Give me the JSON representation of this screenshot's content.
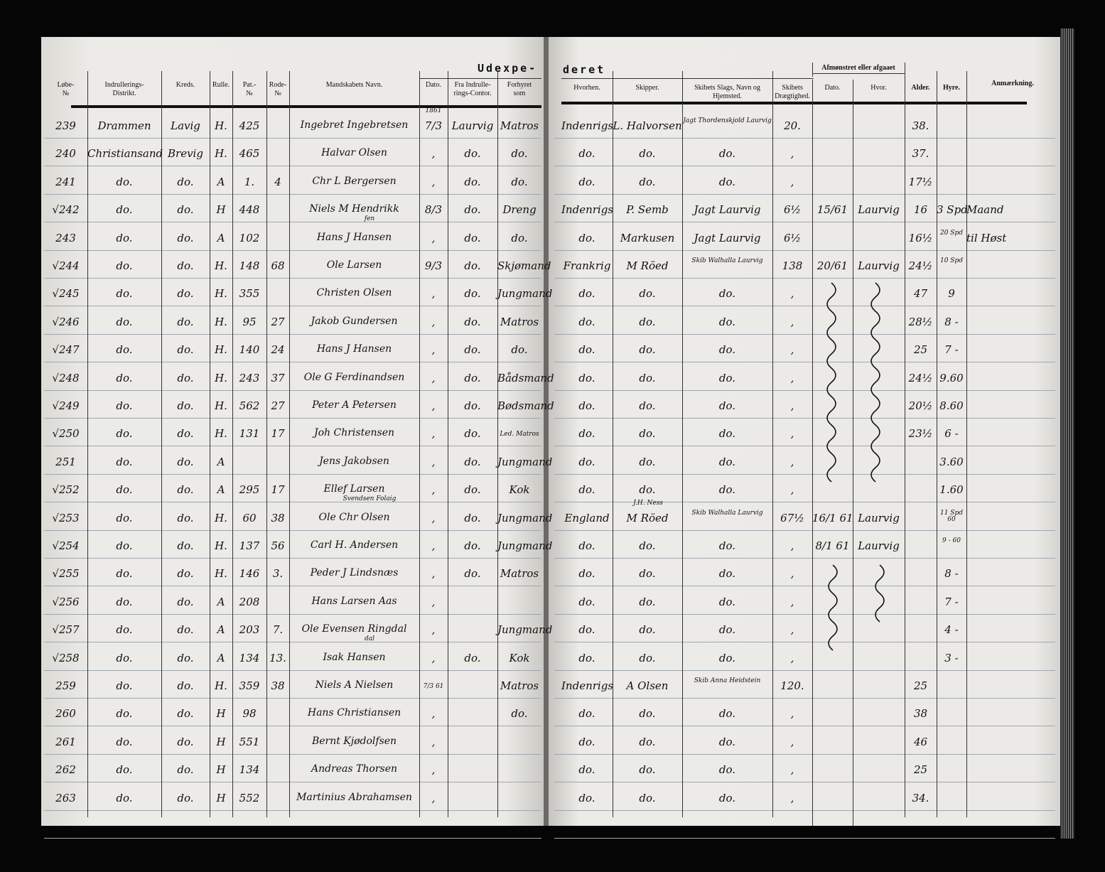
{
  "left_header": {
    "title_part": "Udexpe-",
    "columns": [
      "Løbe-\n№",
      "Indrullerings-\nDistrikt.",
      "Kreds.",
      "Rulle.",
      "Pat.-\n№",
      "Rode-\n№",
      "Mandskabets Navn.",
      "Dato.",
      "Fra Indrulle-\nrings-Contor.",
      "Forhyret\nsom"
    ]
  },
  "right_header": {
    "title_part": "deret",
    "group_label": "Afmønstret eller afgaaet",
    "columns": [
      "Hvorhen.",
      "Skipper.",
      "Skibets Slags, Navn og\nHjemsted.",
      "Skibets\nDrægtighed.",
      "Dato.",
      "Hvor.",
      "Alder.",
      "Hyre.",
      "Anmærkning."
    ]
  },
  "year_note": "1861",
  "rows": [
    {
      "left": [
        "239",
        "Drammen",
        "Lavig",
        "H.",
        "425",
        "",
        "Ingebret Ingebretsen",
        "7/3",
        "Laurvig",
        "Matros"
      ],
      "right": [
        "Indenrigs",
        "L. Halvorsen",
        "Jagt Thordenskjold Laurvig",
        "20.",
        "",
        "",
        "38.",
        "",
        ""
      ]
    },
    {
      "left": [
        "240",
        "Christiansand",
        "Brevig",
        "H.",
        "465",
        "",
        "Halvar Olsen",
        ",",
        "do.",
        "do."
      ],
      "right": [
        "do.",
        "do.",
        "do.",
        ",",
        "",
        "",
        "37.",
        "",
        ""
      ]
    },
    {
      "left": [
        "241",
        "do.",
        "do.",
        "A",
        "1.",
        "4",
        "Chr L Bergersen",
        ",",
        "do.",
        "do."
      ],
      "right": [
        "do.",
        "do.",
        "do.",
        ",",
        "",
        "",
        "17½",
        "",
        ""
      ]
    },
    {
      "left": [
        "√242",
        "do.",
        "do.",
        "H",
        "448",
        "",
        "Niels M Hendrikk",
        "8/3",
        "do.",
        "Dreng"
      ],
      "right": [
        "Indenrigs",
        "P. Semb",
        "Jagt Laurvig",
        "6½",
        "15/61",
        "Laurvig",
        "16",
        "3 Spd",
        "Maand"
      ]
    },
    {
      "left": [
        "243",
        "do.",
        "do.",
        "A",
        "102",
        "",
        "Hans J Hansen",
        ",",
        "do.",
        "do."
      ],
      "right": [
        "do.",
        "Markusen",
        "Jagt Laurvig",
        "6½",
        "",
        "",
        "16½",
        "20 Spd",
        "til Høst"
      ]
    },
    {
      "left": [
        "√244",
        "do.",
        "do.",
        "H.",
        "148",
        "68",
        "Ole Larsen",
        "9/3",
        "do.",
        "Skjømand"
      ],
      "right": [
        "Frankrig",
        "M Röed",
        "Skib Walhalla Laurvig",
        "138",
        "20/61",
        "Laurvig",
        "24½",
        "10 Spd",
        ""
      ]
    },
    {
      "left": [
        "√245",
        "do.",
        "do.",
        "H.",
        "355",
        "",
        "Christen Olsen",
        ",",
        "do.",
        "Jungmand"
      ],
      "right": [
        "do.",
        "do.",
        "do.",
        ",",
        "",
        "",
        "47",
        "9",
        ""
      ]
    },
    {
      "left": [
        "√246",
        "do.",
        "do.",
        "H.",
        "95",
        "27",
        "Jakob Gundersen",
        ",",
        "do.",
        "Matros"
      ],
      "right": [
        "do.",
        "do.",
        "do.",
        ",",
        "",
        "",
        "28½",
        "8 -",
        ""
      ]
    },
    {
      "left": [
        "√247",
        "do.",
        "do.",
        "H.",
        "140",
        "24",
        "Hans J Hansen",
        ",",
        "do.",
        "do."
      ],
      "right": [
        "do.",
        "do.",
        "do.",
        ",",
        "",
        "",
        "25",
        "7 -",
        ""
      ]
    },
    {
      "left": [
        "√248",
        "do.",
        "do.",
        "H.",
        "243",
        "37",
        "Ole G Ferdinandsen",
        ",",
        "do.",
        "Bådsmand"
      ],
      "right": [
        "do.",
        "do.",
        "do.",
        ",",
        "",
        "",
        "24½",
        "9.60",
        ""
      ]
    },
    {
      "left": [
        "√249",
        "do.",
        "do.",
        "H.",
        "562",
        "27",
        "Peter A Petersen",
        ",",
        "do.",
        "Bødsmand"
      ],
      "right": [
        "do.",
        "do.",
        "do.",
        ",",
        "",
        "",
        "20½",
        "8.60",
        ""
      ]
    },
    {
      "left": [
        "√250",
        "do.",
        "do.",
        "H.",
        "131",
        "17",
        "Joh Christensen",
        ",",
        "do.",
        "Led. Matros"
      ],
      "right": [
        "do.",
        "do.",
        "do.",
        ",",
        "",
        "",
        "23½",
        "6 -",
        ""
      ]
    },
    {
      "left": [
        "251",
        "do.",
        "do.",
        "A",
        "",
        "",
        "Jens Jakobsen",
        ",",
        "do.",
        "Jungmand"
      ],
      "right": [
        "do.",
        "do.",
        "do.",
        ",",
        "",
        "",
        "",
        "3.60",
        ""
      ]
    },
    {
      "left": [
        "√252",
        "do.",
        "do.",
        "A",
        "295",
        "17",
        "Ellef Larsen",
        ",",
        "do.",
        "Kok"
      ],
      "right": [
        "do.",
        "do.",
        "do.",
        ",",
        "",
        "",
        "",
        "1.60",
        ""
      ]
    },
    {
      "left": [
        "√253",
        "do.",
        "do.",
        "H.",
        "60",
        "38",
        "Ole Chr Olsen",
        ",",
        "do.",
        "Jungmand"
      ],
      "right": [
        "England",
        "M Röed",
        "Skib Walhalla Laurvig",
        "67½",
        "16/1 61",
        "Laurvig",
        "",
        "11 Spd 60",
        ""
      ]
    },
    {
      "left": [
        "√254",
        "do.",
        "do.",
        "H.",
        "137",
        "56",
        "Carl H. Andersen",
        ",",
        "do.",
        "Jungmand"
      ],
      "right": [
        "do.",
        "do.",
        "do.",
        ",",
        "8/1 61",
        "Laurvig",
        "",
        "9 - 60",
        ""
      ]
    },
    {
      "left": [
        "√255",
        "do.",
        "do.",
        "H.",
        "146",
        "3.",
        "Peder J Lindsnæs",
        ",",
        "do.",
        "Matros"
      ],
      "right": [
        "do.",
        "do.",
        "do.",
        ",",
        "",
        "",
        "",
        "8 -",
        ""
      ]
    },
    {
      "left": [
        "√256",
        "do.",
        "do.",
        "A",
        "208",
        "",
        "Hans Larsen Aas",
        ",",
        "",
        ""
      ],
      "right": [
        "do.",
        "do.",
        "do.",
        ",",
        "",
        "",
        "",
        "7 -",
        ""
      ]
    },
    {
      "left": [
        "√257",
        "do.",
        "do.",
        "A",
        "203",
        "7.",
        "Ole Evensen Ringdal",
        ",",
        "",
        "Jungmand"
      ],
      "right": [
        "do.",
        "do.",
        "do.",
        ",",
        "",
        "",
        "",
        "4 -",
        ""
      ]
    },
    {
      "left": [
        "√258",
        "do.",
        "do.",
        "A",
        "134",
        "13.",
        "Isak Hansen",
        ",",
        "do.",
        "Kok"
      ],
      "right": [
        "do.",
        "do.",
        "do.",
        ",",
        "",
        "",
        "",
        "3 -",
        ""
      ]
    },
    {
      "left": [
        "259",
        "do.",
        "do.",
        "H.",
        "359",
        "38",
        "Niels A Nielsen",
        "7/3 61",
        "",
        "Matros"
      ],
      "right": [
        "Indenrigs",
        "A Olsen",
        "Skib Anna Heidstein",
        "120.",
        "",
        "",
        "25",
        "",
        ""
      ]
    },
    {
      "left": [
        "260",
        "do.",
        "do.",
        "H",
        "98",
        "",
        "Hans Christiansen",
        ",",
        "",
        "do."
      ],
      "right": [
        "do.",
        "do.",
        "do.",
        ",",
        "",
        "",
        "38",
        "",
        ""
      ]
    },
    {
      "left": [
        "261",
        "do.",
        "do.",
        "H",
        "551",
        "",
        "Bernt Kjødolfsen",
        ",",
        "",
        ""
      ],
      "right": [
        "do.",
        "do.",
        "do.",
        ",",
        "",
        "",
        "46",
        "",
        ""
      ]
    },
    {
      "left": [
        "262",
        "do.",
        "do.",
        "H",
        "134",
        "",
        "Andreas Thorsen",
        ",",
        "",
        ""
      ],
      "right": [
        "do.",
        "do.",
        "do.",
        ",",
        "",
        "",
        "25",
        "",
        ""
      ]
    },
    {
      "left": [
        "263",
        "do.",
        "do.",
        "H",
        "552",
        "",
        "Martinius Abrahamsen",
        ",",
        "",
        ""
      ],
      "right": [
        "do.",
        "do.",
        "do.",
        ",",
        "",
        "",
        "34.",
        "",
        ""
      ]
    }
  ],
  "row_notes": {
    "242": "fen",
    "252": "Svendsen Folaig",
    "253": "J.H. Ness",
    "257": "dal"
  }
}
